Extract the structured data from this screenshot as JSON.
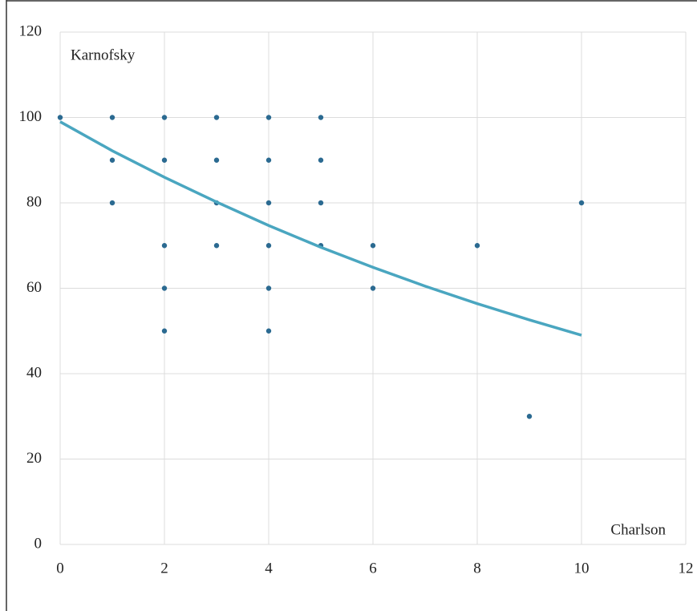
{
  "chart_data": {
    "type": "scatter",
    "x_label": "Charlson",
    "y_label": "Karnofsky",
    "xlim": [
      0,
      12
    ],
    "ylim": [
      0,
      120
    ],
    "xticks": [
      0,
      2,
      4,
      6,
      8,
      10,
      12
    ],
    "yticks": [
      0,
      20,
      40,
      60,
      80,
      100,
      120
    ],
    "grid": true,
    "series": [
      {
        "color": "#2b6a91",
        "mode": "markers",
        "x": [
          0,
          1,
          1,
          1,
          2,
          2,
          2,
          2,
          2,
          3,
          3,
          3,
          3,
          4,
          4,
          4,
          4,
          4,
          4,
          5,
          5,
          5,
          5,
          6,
          6,
          8,
          9,
          10
        ],
        "values": [
          100,
          100,
          90,
          80,
          100,
          90,
          70,
          60,
          50,
          100,
          90,
          80,
          70,
          100,
          90,
          80,
          70,
          60,
          50,
          100,
          90,
          80,
          70,
          70,
          60,
          70,
          30,
          80
        ]
      },
      {
        "color": "#4aa6c0",
        "mode": "line",
        "x": [
          0,
          1,
          2,
          3,
          4,
          5,
          6,
          7,
          8,
          9,
          10
        ],
        "values": [
          99,
          92.2,
          86,
          80.2,
          74.7,
          69.6,
          64.9,
          60.5,
          56.4,
          52.6,
          49
        ]
      }
    ]
  }
}
